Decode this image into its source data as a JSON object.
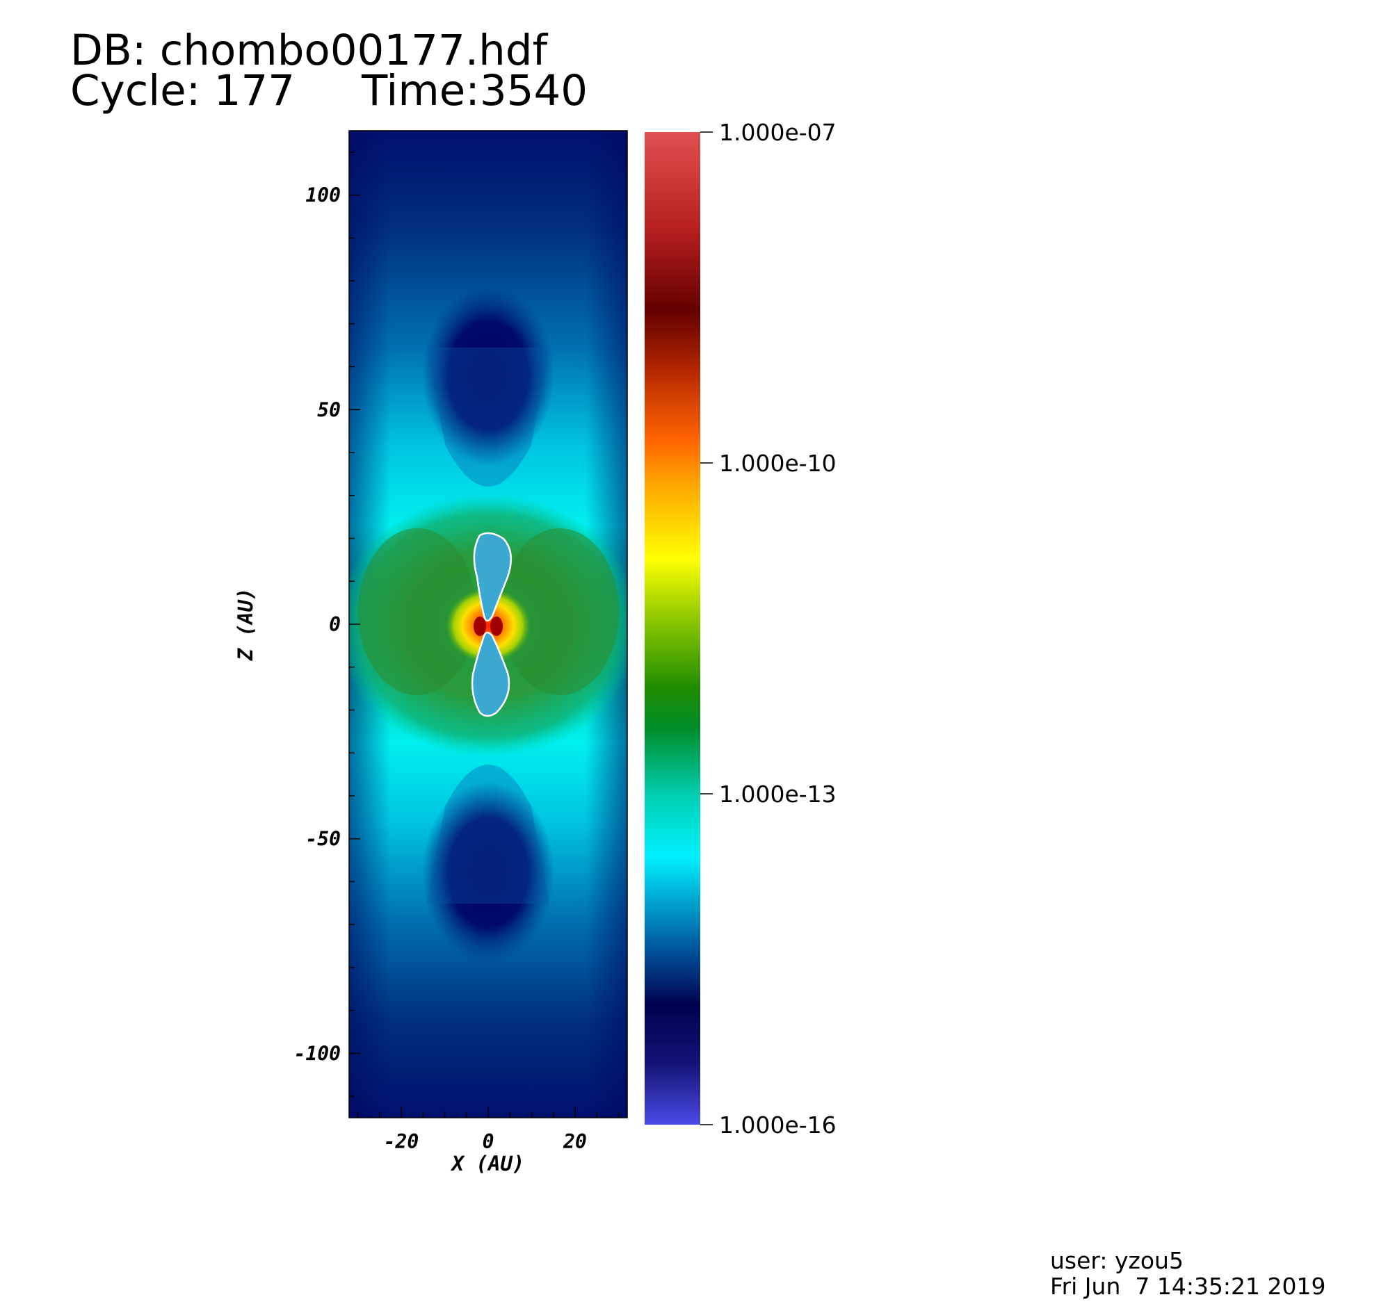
{
  "header": {
    "db": "DB: chombo00177.hdf",
    "cycle": "Cycle: 177",
    "time": "Time:3540"
  },
  "footer": {
    "user": "user: yzou5",
    "date": "Fri Jun  7 14:35:21 2019"
  },
  "colors": {
    "colormap": [
      "#4a4ae0",
      "#000060",
      "#0050a0",
      "#00ffff",
      "#00c8a0",
      "#008000",
      "#c8e000",
      "#ffff00",
      "#ff8000",
      "#ff4000",
      "#600000",
      "#c02020",
      "#e05050"
    ]
  },
  "chart_data": {
    "type": "heatmap",
    "title": "",
    "xlabel": "X (AU)",
    "ylabel": "Z (AU)",
    "xlim": [
      -32,
      32
    ],
    "ylim": [
      -115,
      115
    ],
    "x_ticks": [
      -20,
      0,
      20
    ],
    "x_tick_labels": [
      "-20",
      "0",
      "20"
    ],
    "y_ticks": [
      100,
      50,
      0,
      -50,
      -100
    ],
    "y_tick_labels": [
      "100",
      "50",
      "0",
      "-50",
      "-100"
    ],
    "colorbar": {
      "scale": "log",
      "range": [
        1e-16,
        1e-07
      ],
      "ticks": [
        1e-07,
        1e-10,
        1e-13,
        1e-16
      ],
      "tick_labels": [
        "1.000e-07",
        "1.000e-10",
        "1.000e-13",
        "1.000e-16"
      ]
    },
    "grid": false
  }
}
